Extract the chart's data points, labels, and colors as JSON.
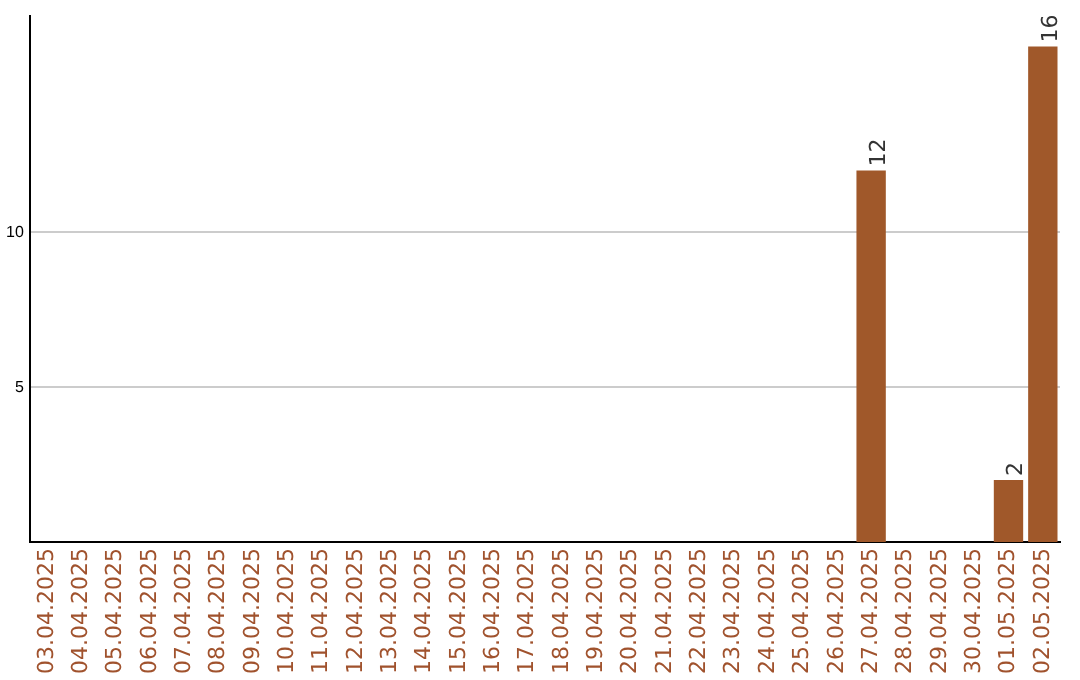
{
  "chart_data": {
    "type": "bar",
    "categories": [
      "03.04.2025",
      "04.04.2025",
      "05.04.2025",
      "06.04.2025",
      "07.04.2025",
      "08.04.2025",
      "09.04.2025",
      "10.04.2025",
      "11.04.2025",
      "12.04.2025",
      "13.04.2025",
      "14.04.2025",
      "15.04.2025",
      "16.04.2025",
      "17.04.2025",
      "18.04.2025",
      "19.04.2025",
      "20.04.2025",
      "21.04.2025",
      "22.04.2025",
      "23.04.2025",
      "24.04.2025",
      "25.04.2025",
      "26.04.2025",
      "27.04.2025",
      "28.04.2025",
      "29.04.2025",
      "30.04.2025",
      "01.05.2025",
      "02.05.2025"
    ],
    "values": [
      0,
      0,
      0,
      0,
      0,
      0,
      0,
      0,
      0,
      0,
      0,
      0,
      0,
      0,
      0,
      0,
      0,
      0,
      0,
      0,
      0,
      0,
      0,
      0,
      12,
      0,
      0,
      0,
      2,
      16
    ],
    "value_labels": [
      null,
      null,
      null,
      null,
      null,
      null,
      null,
      null,
      null,
      null,
      null,
      null,
      null,
      null,
      null,
      null,
      null,
      null,
      null,
      null,
      null,
      null,
      null,
      null,
      "12",
      null,
      null,
      null,
      "2",
      "16"
    ],
    "color": "#a0582a",
    "ylim": [
      0,
      17
    ],
    "yticks": [
      5,
      10
    ],
    "grid": "y",
    "legend": false
  }
}
